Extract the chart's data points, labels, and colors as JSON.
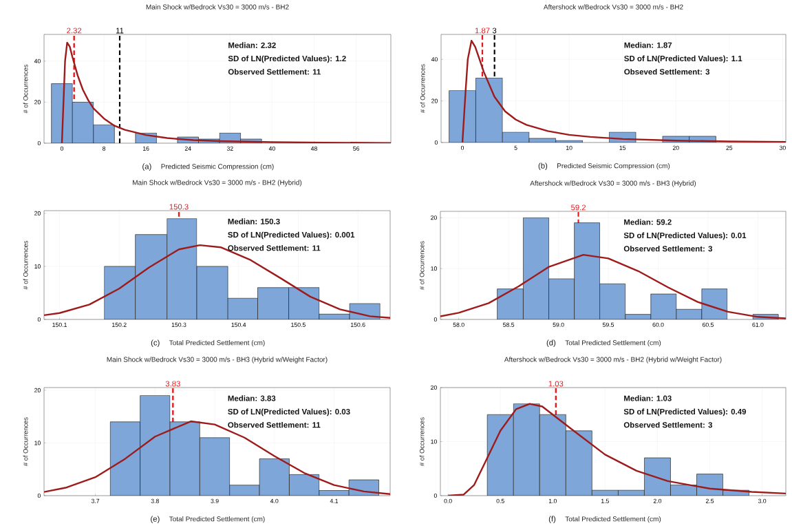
{
  "chart_data": [
    {
      "type": "histogram",
      "title": "Main Shock w/Bedrock Vs30 = 3000 m/s - BH2",
      "xlabel": "Predicted Seismic Compression (cm)",
      "ylabel": "# of Occurrences",
      "xlim": [
        -3.4,
        62.6
      ],
      "ylim": [
        0,
        53
      ],
      "xticks": [
        0,
        8,
        16,
        24,
        32,
        40,
        48,
        56
      ],
      "yticks": [
        0,
        20,
        40
      ],
      "grid": true,
      "series": [
        {
          "color": "#7ea6d8",
          "bins": [
            -2,
            2,
            6,
            10,
            14,
            18,
            22,
            26,
            30,
            34,
            38
          ],
          "values": [
            29,
            20,
            9,
            0,
            5,
            0,
            3,
            2,
            5,
            2
          ]
        },
        {
          "type": "line",
          "color": "#9e1b1b",
          "x": [
            0,
            0.3,
            0.6,
            1,
            1.5,
            2,
            3,
            4,
            5,
            6,
            8,
            10,
            12,
            16,
            20,
            25,
            30,
            40,
            50,
            62.6
          ],
          "values": [
            0,
            20,
            40,
            49,
            47,
            42,
            33,
            26,
            21,
            17,
            12,
            8.5,
            6.5,
            4,
            2.5,
            1.5,
            1,
            0.5,
            0.3,
            0.1
          ]
        }
      ],
      "ref_lines": [
        {
          "axis": "x",
          "value": 2.32,
          "label": "2.32",
          "color": "#e3191c",
          "line_style": "dashed"
        },
        {
          "axis": "x",
          "value": 11,
          "label": "11",
          "color": "#000000",
          "line_style": "dashed"
        }
      ],
      "annotations": [
        "(a)",
        "Median: 2.32",
        "SD of LN(Predicted Values): 1.2",
        "Observed Settlement: 11"
      ]
    },
    {
      "type": "histogram",
      "title": "Aftershock w/Bedrock Vs30 = 3000 m/s - BH2",
      "xlabel": "Predicted Seismic Compression (cm)",
      "ylabel": "# of Occurrences",
      "xlim": [
        -2.0,
        30.3
      ],
      "ylim": [
        0,
        52
      ],
      "xticks": [
        0,
        5,
        10,
        15,
        20,
        25,
        30
      ],
      "yticks": [
        0,
        20,
        40
      ],
      "grid": true,
      "series": [
        {
          "color": "#7ea6d8",
          "bins": [
            -1.25,
            1.25,
            3.75,
            6.25,
            8.75,
            11.25,
            13.75,
            16.25,
            18.75,
            21.25,
            23.75
          ],
          "values": [
            25,
            31,
            5,
            2,
            1,
            0,
            5,
            0,
            3,
            3
          ]
        },
        {
          "type": "line",
          "color": "#9e1b1b",
          "x": [
            0,
            0.3,
            0.5,
            0.85,
            1.2,
            1.6,
            2,
            3,
            4,
            5,
            6,
            8,
            10,
            12,
            15,
            20,
            25,
            30.3
          ],
          "values": [
            0,
            25,
            40,
            49,
            46,
            40,
            34,
            22,
            15,
            11,
            8.5,
            5.5,
            3.7,
            2.7,
            1.7,
            0.9,
            0.5,
            0.3
          ]
        }
      ],
      "ref_lines": [
        {
          "axis": "x",
          "value": 1.87,
          "label": "1.87",
          "color": "#e3191c",
          "line_style": "dashed"
        },
        {
          "axis": "x",
          "value": 3,
          "label": "3",
          "color": "#000000",
          "line_style": "dashed"
        }
      ],
      "annotations": [
        "(b)",
        "Median: 1.87",
        "SD of LN(Predicted Values): 1.1",
        "Obseved Settlement: 3"
      ]
    },
    {
      "type": "histogram",
      "title": "Main Shock w/Bedrock Vs30 = 3000 m/s - BH2 (Hybrid)",
      "xlabel": "Total Predicted Settlement (cm)",
      "ylabel": "# of Occurrences",
      "xlim": [
        150.074,
        150.654
      ],
      "ylim": [
        0,
        20.5
      ],
      "xticks": [
        150.1,
        150.2,
        150.3,
        150.4,
        150.5,
        150.6
      ],
      "yticks": [
        0,
        10,
        20
      ],
      "grid": true,
      "series": [
        {
          "color": "#7ea6d8",
          "bins": [
            150.175,
            150.227,
            150.28,
            150.33,
            150.382,
            150.432,
            150.484,
            150.535,
            150.586,
            150.637
          ],
          "values": [
            10,
            16,
            19,
            10,
            4,
            6,
            6,
            1,
            3
          ]
        },
        {
          "type": "line",
          "color": "#9e1b1b",
          "x": [
            150.074,
            150.1,
            150.15,
            150.2,
            150.25,
            150.3,
            150.335,
            150.37,
            150.42,
            150.47,
            150.52,
            150.57,
            150.62,
            150.654
          ],
          "values": [
            0.8,
            1.2,
            2.8,
            5.8,
            9.8,
            13.2,
            14,
            13.6,
            11.2,
            7.8,
            4.3,
            1.9,
            0.6,
            0.3
          ]
        }
      ],
      "ref_lines": [
        {
          "axis": "x",
          "value": 150.3,
          "label": "150.3",
          "color": "#e3191c",
          "line_style": "dashed"
        }
      ],
      "annotations": [
        "(c)",
        "Median: 150.3",
        "SD of LN(Predicted Values): 0.001",
        "Observed Settlement: 11"
      ]
    },
    {
      "type": "histogram",
      "title": "Aftershock w/Bedrock Vs30 = 3000 m/s - BH3 (Hybrid)",
      "xlabel": "Total Predicted Settlement (cm)",
      "ylabel": "# of Occurrences",
      "xlim": [
        57.816,
        61.28
      ],
      "ylim": [
        0,
        21.25
      ],
      "xticks": [
        {
          "value": 58.0,
          "label": "58.0"
        },
        {
          "value": 58.5,
          "label": "58.5"
        },
        {
          "value": 59.0,
          "label": "59.0"
        },
        {
          "value": 59.5,
          "label": "59.5"
        },
        {
          "value": 60.0,
          "label": "60.0"
        },
        {
          "value": 60.5,
          "label": "60.5"
        },
        {
          "value": 61.0,
          "label": "61.0"
        }
      ],
      "yticks": [
        0,
        10,
        20
      ],
      "grid": true,
      "series": [
        {
          "color": "#7ea6d8",
          "bins": [
            58.386,
            58.647,
            58.903,
            59.159,
            59.414,
            59.67,
            59.926,
            60.182,
            60.437,
            60.693,
            60.949,
            61.205
          ],
          "values": [
            6,
            20,
            8,
            19,
            7,
            1,
            5,
            2,
            6,
            0,
            1
          ]
        },
        {
          "type": "line",
          "color": "#9e1b1b",
          "x": [
            57.816,
            58.0,
            58.3,
            58.6,
            58.9,
            59.25,
            59.5,
            59.8,
            60.1,
            60.4,
            60.7,
            61.0,
            61.28
          ],
          "values": [
            0.6,
            1.3,
            3.2,
            6.5,
            10.3,
            12.7,
            12,
            9.5,
            6.3,
            3.4,
            1.5,
            0.5,
            0.2
          ]
        }
      ],
      "ref_lines": [
        {
          "axis": "x",
          "value": 59.2,
          "label": "59.2",
          "color": "#e3191c",
          "line_style": "dashed"
        }
      ],
      "annotations": [
        "(d)",
        "Median: 59.2",
        "SD of LN(Predicted Values): 0.01",
        "Observed Settlement: 3"
      ]
    },
    {
      "type": "histogram",
      "title": "Main Shock w/Bedrock Vs30 = 3000 m/s - BH3 (Hybrid w/Weight Factor)",
      "xlabel": "Total Predicted Settlement (cm)",
      "ylabel": "# of Occurrences",
      "xlim": [
        3.614,
        4.194
      ],
      "ylim": [
        0,
        20.5
      ],
      "xticks": [
        3.7,
        3.8,
        3.9,
        {
          "value": 4.0,
          "label": "4.0"
        },
        4.1
      ],
      "yticks": [
        0,
        10,
        20
      ],
      "grid": true,
      "series": [
        {
          "color": "#7ea6d8",
          "bins": [
            3.725,
            3.775,
            3.825,
            3.875,
            3.925,
            3.975,
            4.025,
            4.075,
            4.125,
            4.175
          ],
          "values": [
            14,
            19,
            14,
            11,
            2,
            7,
            4,
            1,
            3
          ]
        },
        {
          "type": "line",
          "color": "#9e1b1b",
          "x": [
            3.614,
            3.65,
            3.7,
            3.75,
            3.8,
            3.86,
            3.9,
            3.95,
            4.0,
            4.05,
            4.1,
            4.15,
            4.194
          ],
          "values": [
            0.7,
            1.5,
            3.5,
            7,
            11.2,
            14.1,
            13.5,
            11,
            7.5,
            4.3,
            2,
            0.8,
            0.3
          ]
        }
      ],
      "ref_lines": [
        {
          "axis": "x",
          "value": 3.83,
          "label": "3.83",
          "color": "#e3191c",
          "line_style": "dashed"
        }
      ],
      "annotations": [
        "(e)",
        "Median: 3.83",
        "SD of LN(Predicted Values): 0.03",
        "Observed Settlement: 11"
      ]
    },
    {
      "type": "histogram",
      "title": "Aftershock w/Bedrock Vs30 = 3000 m/s - BH2 (Hybrid w/Weight Factor)",
      "xlabel": "Total Predicted Settlement (cm)",
      "ylabel": "# of Occurrences",
      "xlim": [
        -0.073,
        3.226
      ],
      "ylim": [
        0,
        20
      ],
      "xticks": [
        {
          "value": 0.0,
          "label": "0.0"
        },
        0.5,
        {
          "value": 1.0,
          "label": "1.0"
        },
        1.5,
        {
          "value": 2.0,
          "label": "2.0"
        },
        2.5,
        {
          "value": 3.0,
          "label": "3.0"
        }
      ],
      "yticks": [
        0,
        10,
        20
      ],
      "grid": true,
      "series": [
        {
          "color": "#7ea6d8",
          "bins": [
            0.375,
            0.625,
            0.875,
            1.125,
            1.375,
            1.625,
            1.875,
            2.125,
            2.375,
            2.625,
            2.875
          ],
          "values": [
            15,
            17,
            15,
            12,
            1,
            1,
            7,
            2,
            4,
            1
          ]
        },
        {
          "type": "line",
          "color": "#9e1b1b",
          "x": [
            0,
            0.15,
            0.25,
            0.35,
            0.5,
            0.65,
            0.78,
            0.9,
            1.0,
            1.2,
            1.5,
            1.8,
            2.1,
            2.5,
            2.9,
            3.226
          ],
          "values": [
            0,
            0.2,
            2,
            6,
            12,
            16,
            17,
            16.5,
            15,
            12,
            7.6,
            4.6,
            2.7,
            1.3,
            0.7,
            0.4
          ]
        }
      ],
      "ref_lines": [
        {
          "axis": "x",
          "value": 1.03,
          "label": "1.03",
          "color": "#e3191c",
          "line_style": "dashed"
        }
      ],
      "annotations": [
        "(f)",
        "Median: 1.03",
        "SD of LN(Predicted Values): 0.49",
        "Observed Settlement: 3"
      ]
    }
  ]
}
